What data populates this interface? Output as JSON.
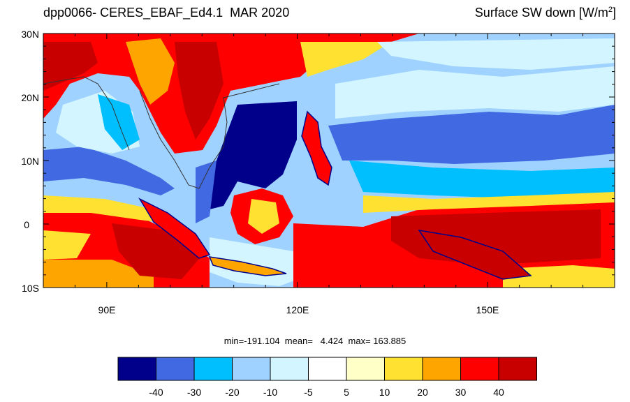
{
  "header": {
    "title_left": "dpp0066- CERES_EBAF_Ed4.1  MAR 2020",
    "title_right_prefix": "Surface SW down [W/m",
    "title_right_sup": "2",
    "title_right_suffix": "]"
  },
  "axes": {
    "lat_labels": [
      "30N",
      "20N",
      "10N",
      "0",
      "10S"
    ],
    "lon_labels": [
      "90E",
      "120E",
      "150E"
    ]
  },
  "stats": {
    "text": "min=-191.104  mean=   4.424  max= 163.885"
  },
  "colorbar": {
    "colors": [
      "#00008b",
      "#4169e1",
      "#00bfff",
      "#a0d2ff",
      "#d2f5ff",
      "#ffffff",
      "#ffffc8",
      "#ffe132",
      "#ffa500",
      "#ff0000",
      "#c80000"
    ],
    "labels": [
      "-40",
      "-30",
      "-20",
      "-10",
      "-5",
      "5",
      "10",
      "20",
      "30",
      "40"
    ]
  },
  "map": {
    "lon_range": [
      80,
      170
    ],
    "lat_range": [
      -10,
      30
    ]
  }
}
